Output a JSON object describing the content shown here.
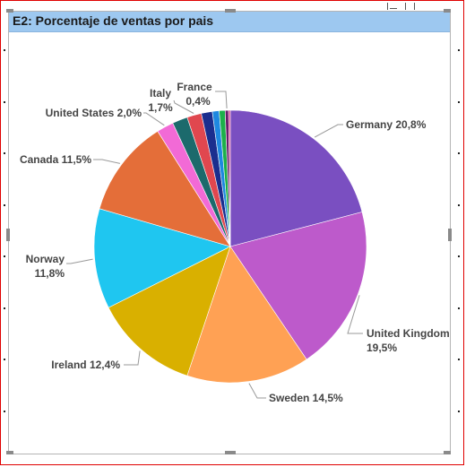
{
  "visual": {
    "title": "E2: Porcentaje de ventas por pais"
  },
  "chart_data": {
    "type": "pie",
    "title": "E2: Porcentaje de ventas por pais",
    "slices": [
      {
        "name": "Germany",
        "value": 20.8,
        "value_label": "20,8%",
        "color": "#7a4fc1"
      },
      {
        "name": "United Kingdom",
        "value": 19.5,
        "value_label": "19,5%",
        "color": "#bd5acb"
      },
      {
        "name": "Sweden",
        "value": 14.5,
        "value_label": "14,5%",
        "color": "#ffa154"
      },
      {
        "name": "Ireland",
        "value": 12.4,
        "value_label": "12,4%",
        "color": "#d9b000"
      },
      {
        "name": "Norway",
        "value": 11.8,
        "value_label": "11,8%",
        "color": "#1fc6f0"
      },
      {
        "name": "Canada",
        "value": 11.5,
        "value_label": "11,5%",
        "color": "#e46e39"
      },
      {
        "name": "United States",
        "value": 2.0,
        "value_label": "2,0%",
        "color": "#f26ad6"
      },
      {
        "name": "",
        "value": 1.8,
        "value_label": "",
        "color": "#1c6a6c"
      },
      {
        "name": "Italy",
        "value": 1.7,
        "value_label": "1,7%",
        "color": "#e0474f"
      },
      {
        "name": "",
        "value": 1.3,
        "value_label": "",
        "color": "#1b2e8e"
      },
      {
        "name": "",
        "value": 0.8,
        "value_label": "",
        "color": "#1e88e0"
      },
      {
        "name": "",
        "value": 0.7,
        "value_label": "",
        "color": "#1db04a"
      },
      {
        "name": "France",
        "value": 0.4,
        "value_label": "0,4%",
        "color": "#6a1a6a"
      },
      {
        "name": "",
        "value": 0.2,
        "value_label": "",
        "color": "#d42a8a"
      }
    ],
    "start_angle": "12 o'clock",
    "direction": "clockwise",
    "legend": "none",
    "data_labels": "outside with leader lines"
  }
}
